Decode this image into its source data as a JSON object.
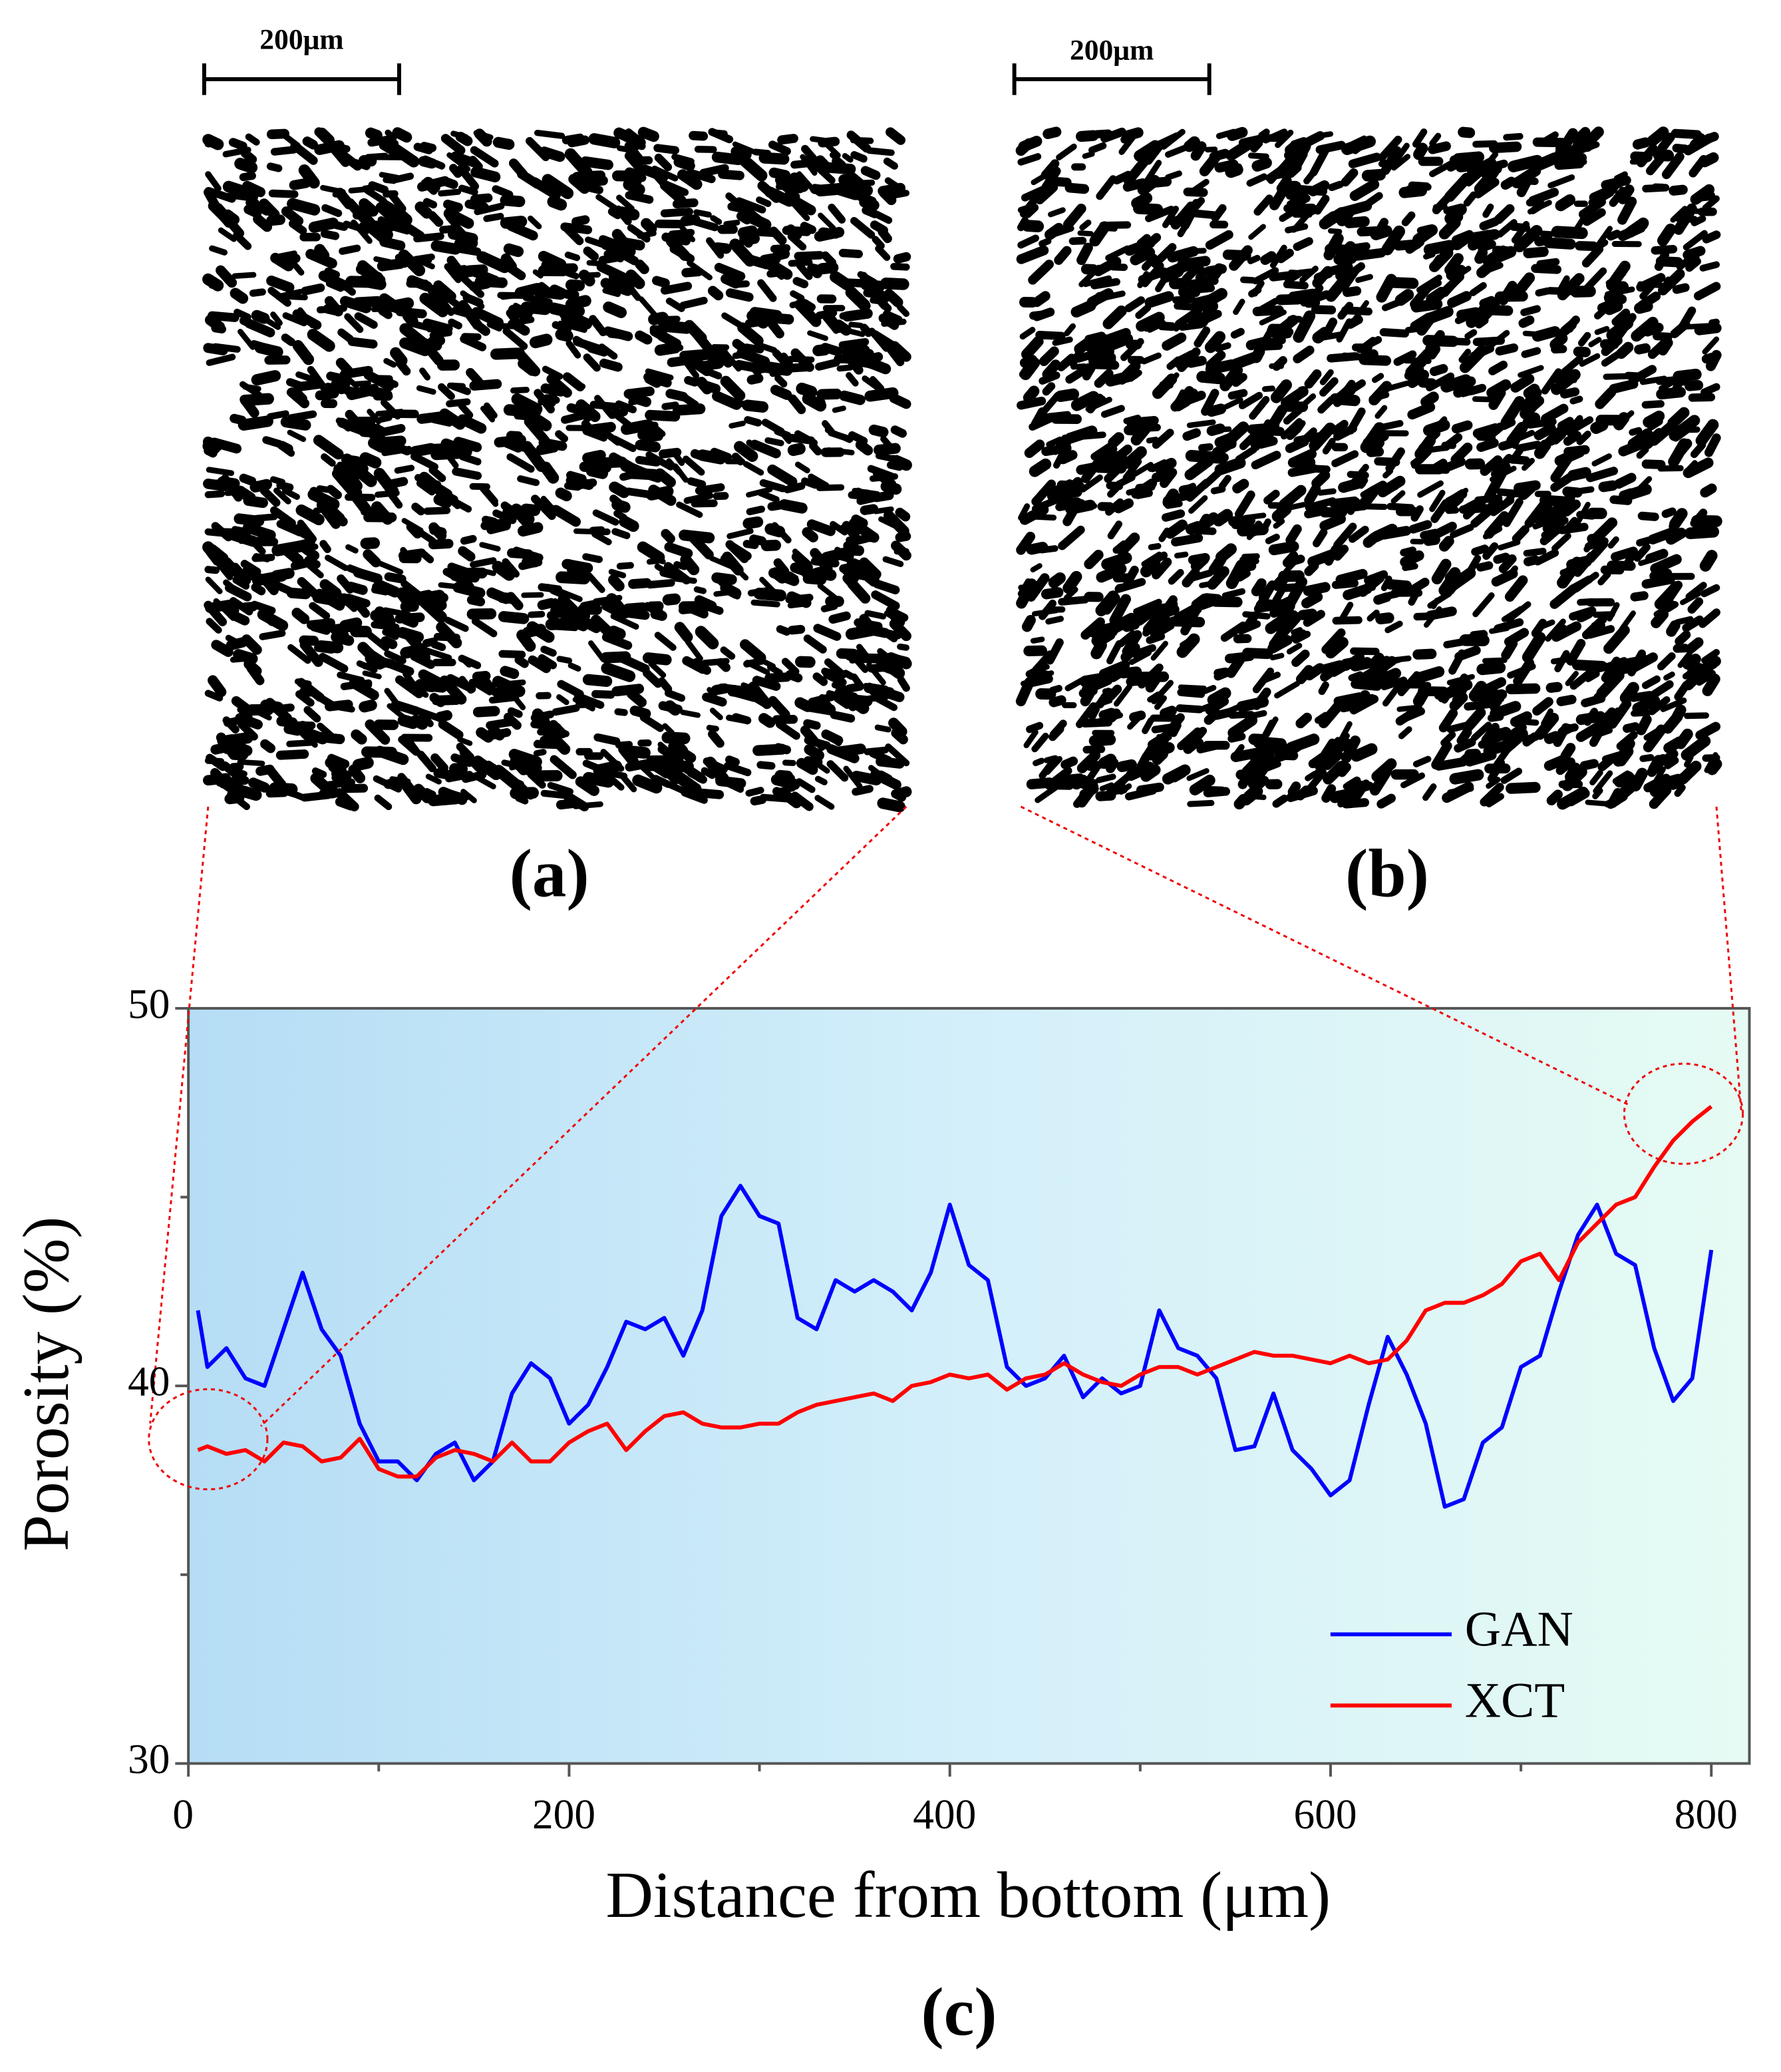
{
  "chart_data": {
    "type": "line",
    "xlabel": "Distance from bottom (μm)",
    "ylabel": "Porosity (%)",
    "annotations": [
      "(a)",
      "(b)",
      "(c)"
    ],
    "scale_bar_labels": [
      "200μm",
      "200μm"
    ],
    "x": [
      5,
      10,
      20,
      30,
      40,
      50,
      60,
      70,
      80,
      90,
      100,
      110,
      120,
      130,
      140,
      150,
      160,
      170,
      180,
      190,
      200,
      210,
      220,
      230,
      240,
      250,
      260,
      270,
      280,
      290,
      300,
      310,
      320,
      330,
      340,
      350,
      360,
      370,
      380,
      390,
      400,
      410,
      420,
      430,
      440,
      450,
      460,
      470,
      480,
      490,
      500,
      510,
      520,
      530,
      540,
      550,
      560,
      570,
      580,
      590,
      600,
      610,
      620,
      630,
      640,
      650,
      660,
      670,
      680,
      690,
      700,
      710,
      720,
      730,
      740,
      750,
      760,
      770,
      780,
      790,
      800
    ],
    "series": [
      {
        "name": "GAN",
        "color": "#0000ff",
        "values": [
          42,
          40.5,
          41,
          40.2,
          40,
          41.5,
          43,
          41.5,
          40.8,
          39,
          38,
          38,
          37.5,
          38.2,
          38.5,
          37.5,
          38,
          39.8,
          40.6,
          40.2,
          39,
          39.5,
          40.5,
          41.7,
          41.5,
          41.8,
          40.8,
          42,
          44.5,
          45.3,
          44.5,
          44.3,
          41.8,
          41.5,
          42.8,
          42.5,
          42.8,
          42.5,
          42,
          43,
          44.8,
          43.2,
          42.8,
          40.5,
          40,
          40.2,
          40.8,
          39.7,
          40.2,
          39.8,
          40,
          42,
          41,
          40.8,
          40.2,
          38.3,
          38.4,
          39.8,
          38.3,
          37.8,
          37.1,
          37.5,
          39.5,
          41.3,
          40.3,
          39,
          36.8,
          37,
          38.5,
          38.9,
          40.5,
          40.8,
          42.5,
          44,
          44.8,
          43.5,
          43.2,
          41,
          39.6,
          40.2,
          43.6
        ]
      },
      {
        "name": "XCT",
        "color": "#ff0000",
        "values": [
          38.3,
          38.4,
          38.2,
          38.3,
          38,
          38.5,
          38.4,
          38,
          38.1,
          38.6,
          37.8,
          37.6,
          37.6,
          38.1,
          38.3,
          38.2,
          38,
          38.5,
          38,
          38,
          38.5,
          38.8,
          39,
          38.3,
          38.8,
          39.2,
          39.3,
          39,
          38.9,
          38.9,
          39,
          39,
          39.3,
          39.5,
          39.6,
          39.7,
          39.8,
          39.6,
          40,
          40.1,
          40.3,
          40.2,
          40.3,
          39.9,
          40.2,
          40.3,
          40.6,
          40.3,
          40.1,
          40,
          40.3,
          40.5,
          40.5,
          40.3,
          40.5,
          40.7,
          40.9,
          40.8,
          40.8,
          40.7,
          40.6,
          40.8,
          40.6,
          40.7,
          41.2,
          42,
          42.2,
          42.2,
          42.4,
          42.7,
          43.3,
          43.5,
          42.8,
          43.8,
          44.3,
          44.8,
          45,
          45.8,
          46.5,
          47,
          47.4
        ]
      }
    ],
    "xlim": [
      0,
      820
    ],
    "ylim": [
      30,
      50
    ],
    "xticks": [
      0,
      200,
      400,
      600,
      800
    ],
    "yticks": [
      30,
      40,
      50
    ],
    "xminor_ticks": [
      100,
      300,
      500,
      700
    ],
    "yminor_ticks": [
      35,
      45
    ],
    "legend": "lower right"
  }
}
